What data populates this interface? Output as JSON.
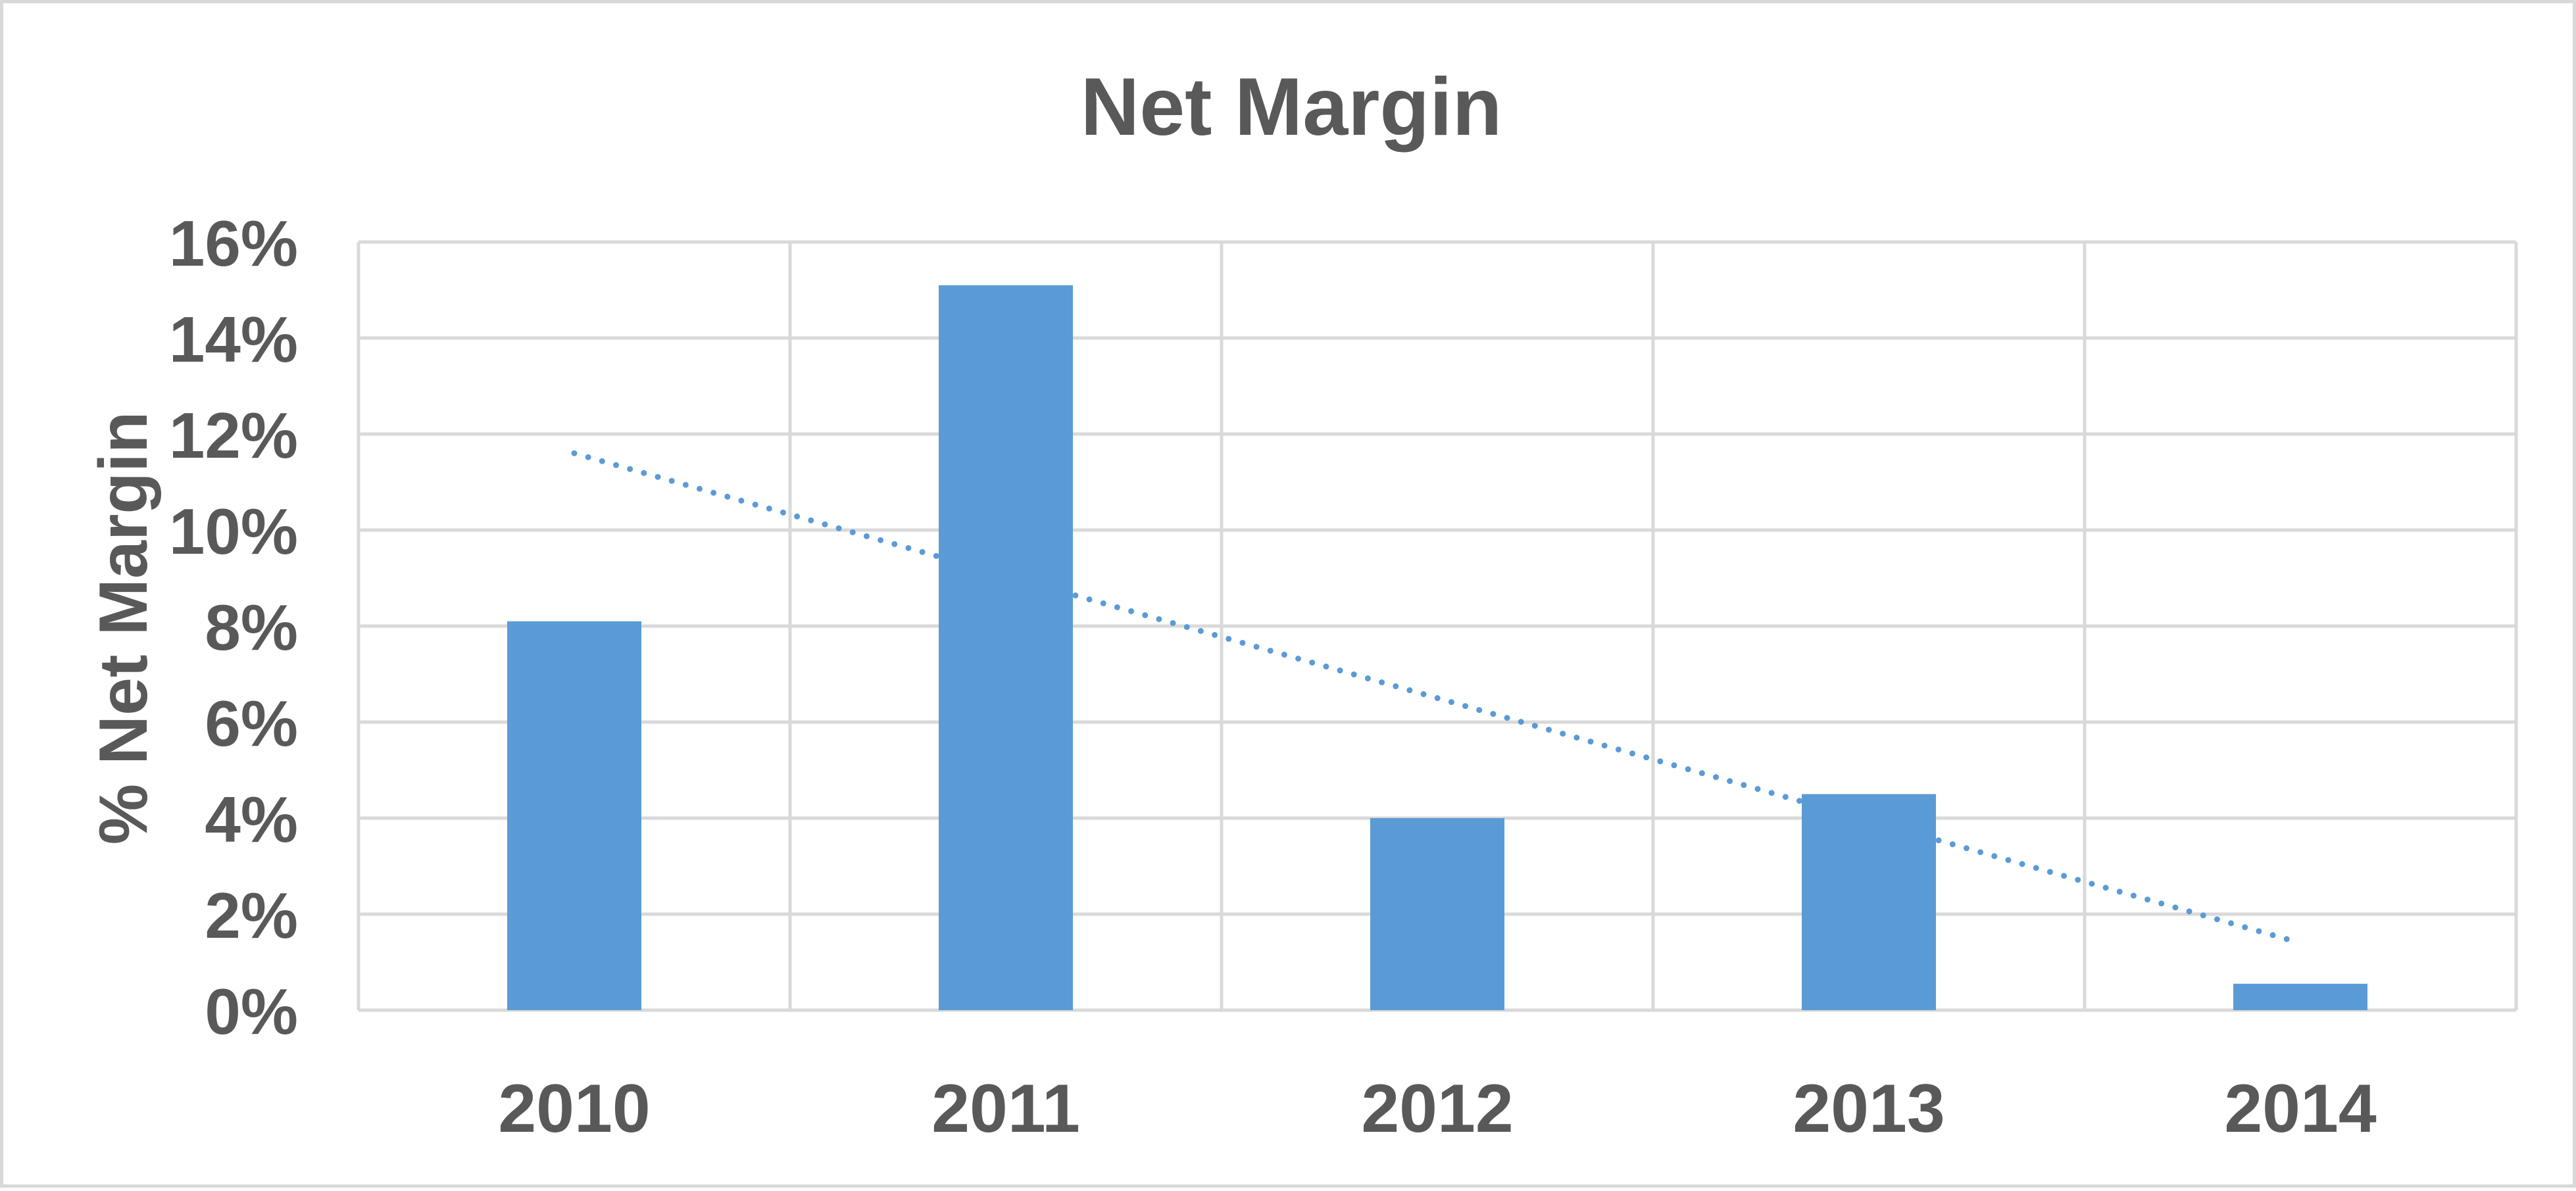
{
  "chart_data": {
    "type": "bar",
    "title": "Net Margin",
    "ylabel": "% Net Margin",
    "xlabel": "",
    "categories": [
      "2010",
      "2011",
      "2012",
      "2013",
      "2014"
    ],
    "values": [
      8.1,
      15.1,
      4.0,
      4.5,
      0.55
    ],
    "ylim": [
      0,
      16
    ],
    "yticks": [
      0,
      2,
      4,
      6,
      8,
      10,
      12,
      14,
      16
    ],
    "ytick_labels": [
      "0%",
      "2%",
      "4%",
      "6%",
      "8%",
      "10%",
      "12%",
      "14%",
      "16%"
    ],
    "grid": true,
    "legend": "none",
    "trendline": {
      "type": "linear",
      "style": "dotted",
      "start_value": 11.6,
      "end_value": 1.4
    },
    "colors": {
      "bar": "#5b9bd5",
      "trendline": "#5b9bd5",
      "grid": "#d9d9d9",
      "text": "#595959"
    }
  }
}
